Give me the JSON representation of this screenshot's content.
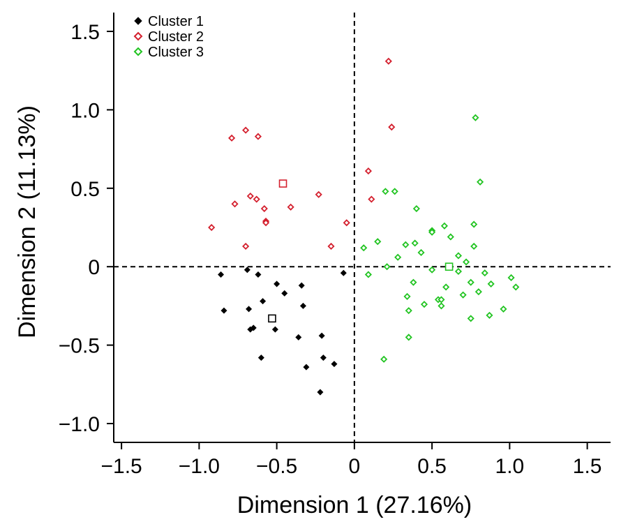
{
  "chart_data": {
    "type": "scatter",
    "title": "",
    "xlabel": "Dimension 1 (27.16%)",
    "ylabel": "Dimension 2 (11.13%)",
    "xlim": [
      -1.55,
      1.65
    ],
    "ylim": [
      -1.12,
      1.62
    ],
    "x_ticks": [
      -1.5,
      -1.0,
      -0.5,
      0,
      0.5,
      1.0,
      1.5
    ],
    "x_tick_labels": [
      "−1.5",
      "−1.0",
      "−0.5",
      "0",
      "0.5",
      "1.0",
      "1.5"
    ],
    "y_ticks": [
      1.5,
      1.0,
      0.5,
      0,
      -0.5,
      -1.0
    ],
    "y_tick_labels": [
      "1.5",
      "1.0",
      "0.5",
      "0",
      "−0.5",
      "−1.0"
    ],
    "reference_lines": {
      "x": 0,
      "y": 0,
      "style": "dashed"
    },
    "legend_position": "top-left",
    "series": [
      {
        "name": "Cluster 1",
        "color": "#000000",
        "marker": "filled-diamond",
        "centroid": [
          -0.53,
          -0.33
        ],
        "points": [
          [
            -0.86,
            -0.05
          ],
          [
            -0.84,
            -0.28
          ],
          [
            -0.69,
            -0.02
          ],
          [
            -0.68,
            -0.27
          ],
          [
            -0.67,
            -0.4
          ],
          [
            -0.65,
            -0.39
          ],
          [
            -0.62,
            -0.05
          ],
          [
            -0.6,
            -0.58
          ],
          [
            -0.59,
            -0.22
          ],
          [
            -0.51,
            -0.4
          ],
          [
            -0.5,
            -0.11
          ],
          [
            -0.45,
            -0.17
          ],
          [
            -0.36,
            -0.45
          ],
          [
            -0.34,
            -0.12
          ],
          [
            -0.33,
            -0.25
          ],
          [
            -0.31,
            -0.64
          ],
          [
            -0.22,
            -0.8
          ],
          [
            -0.21,
            -0.44
          ],
          [
            -0.2,
            -0.58
          ],
          [
            -0.13,
            -0.62
          ],
          [
            -0.07,
            -0.04
          ]
        ]
      },
      {
        "name": "Cluster 2",
        "color": "#d4202e",
        "marker": "hollow-diamond",
        "centroid": [
          -0.46,
          0.53
        ],
        "points": [
          [
            -0.92,
            0.25
          ],
          [
            -0.79,
            0.82
          ],
          [
            -0.77,
            0.4
          ],
          [
            -0.7,
            0.87
          ],
          [
            -0.7,
            0.13
          ],
          [
            -0.67,
            0.45
          ],
          [
            -0.63,
            0.43
          ],
          [
            -0.62,
            0.83
          ],
          [
            -0.58,
            0.37
          ],
          [
            -0.57,
            0.29
          ],
          [
            -0.57,
            0.28
          ],
          [
            -0.41,
            0.38
          ],
          [
            -0.23,
            0.46
          ],
          [
            -0.15,
            0.13
          ],
          [
            -0.05,
            0.28
          ],
          [
            0.09,
            0.61
          ],
          [
            0.11,
            0.43
          ],
          [
            0.22,
            1.31
          ],
          [
            0.24,
            0.89
          ]
        ]
      },
      {
        "name": "Cluster 3",
        "color": "#22c422",
        "marker": "hollow-diamond",
        "centroid": [
          0.61,
          0.0
        ],
        "points": [
          [
            0.06,
            0.12
          ],
          [
            0.09,
            -0.05
          ],
          [
            0.15,
            0.16
          ],
          [
            0.19,
            -0.59
          ],
          [
            0.2,
            0.48
          ],
          [
            0.21,
            0.0
          ],
          [
            0.26,
            0.48
          ],
          [
            0.28,
            0.06
          ],
          [
            0.33,
            0.14
          ],
          [
            0.34,
            -0.19
          ],
          [
            0.35,
            -0.28
          ],
          [
            0.35,
            -0.45
          ],
          [
            0.38,
            -0.1
          ],
          [
            0.39,
            0.15
          ],
          [
            0.4,
            0.37
          ],
          [
            0.43,
            0.09
          ],
          [
            0.45,
            -0.24
          ],
          [
            0.5,
            0.23
          ],
          [
            0.5,
            0.22
          ],
          [
            0.5,
            -0.02
          ],
          [
            0.54,
            -0.21
          ],
          [
            0.56,
            -0.21
          ],
          [
            0.56,
            -0.25
          ],
          [
            0.58,
            0.26
          ],
          [
            0.59,
            -0.13
          ],
          [
            0.62,
            0.19
          ],
          [
            0.67,
            -0.03
          ],
          [
            0.67,
            0.07
          ],
          [
            0.7,
            -0.18
          ],
          [
            0.72,
            0.03
          ],
          [
            0.75,
            -0.1
          ],
          [
            0.75,
            -0.33
          ],
          [
            0.77,
            0.13
          ],
          [
            0.77,
            0.27
          ],
          [
            0.78,
            0.95
          ],
          [
            0.8,
            -0.16
          ],
          [
            0.81,
            0.54
          ],
          [
            0.84,
            -0.04
          ],
          [
            0.87,
            -0.31
          ],
          [
            0.88,
            -0.11
          ],
          [
            0.96,
            -0.27
          ],
          [
            1.01,
            -0.07
          ],
          [
            1.04,
            -0.13
          ]
        ]
      }
    ]
  }
}
